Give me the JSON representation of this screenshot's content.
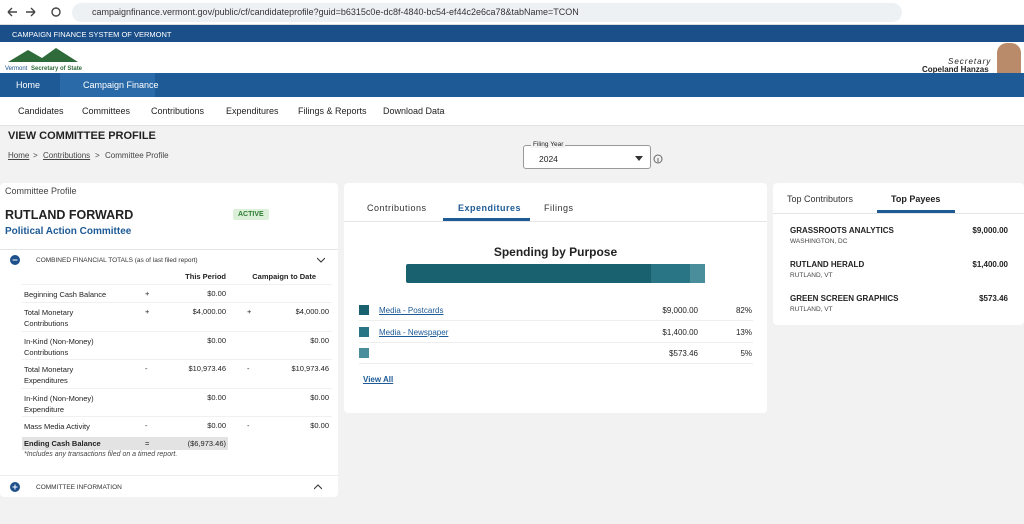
{
  "browser": {
    "url": "campaignfinance.vermont.gov/public/cf/candidateprofile?guid=b6315c0e-dc8f-4840-bc54-ef44c2e6ca78&tabName=TCON"
  },
  "header": {
    "banner": "CAMPAIGN FINANCE SYSTEM OF VERMONT",
    "logo_state": "Vermont",
    "logo_office": "Secretary of State",
    "secretary_title": "Secretary",
    "secretary_name": "Copeland Hanzas"
  },
  "nav": {
    "tabs": [
      "Home",
      "Campaign Finance"
    ],
    "menu": [
      "Candidates",
      "Committees",
      "Contributions",
      "Expenditures",
      "Filings & Reports",
      "Download Data"
    ]
  },
  "page": {
    "title": "VIEW COMMITTEE PROFILE",
    "breadcrumb": [
      "Home",
      "Contributions",
      "Committee Profile"
    ],
    "filing_year_label": "Filing Year",
    "filing_year": "2024"
  },
  "profile": {
    "heading": "Committee Profile",
    "name": "RUTLAND FORWARD",
    "status": "ACTIVE",
    "type": "Political Action Committee",
    "totals_title": "COMBINED FINANCIAL TOTALS (as of last filed report)",
    "columns": [
      "This Period",
      "Campaign to Date"
    ],
    "rows": [
      {
        "label": "Beginning Cash Balance",
        "sign_period": "+",
        "period": "$0.00"
      },
      {
        "label": "Total Monetary Contributions",
        "sign_period": "+",
        "period": "$4,000.00",
        "sign_to_date": "+",
        "to_date": "$4,000.00"
      },
      {
        "label": "In-Kind (Non-Money) Contributions",
        "period": "$0.00",
        "to_date": "$0.00"
      },
      {
        "label": "Total Monetary Expenditures",
        "sign_period": "-",
        "period": "$10,973.46",
        "sign_to_date": "-",
        "to_date": "$10,973.46"
      },
      {
        "label": "In-Kind (Non-Money) Expenditure",
        "period": "$0.00",
        "to_date": "$0.00"
      },
      {
        "label": "Mass Media Activity",
        "sign_period": "-",
        "period": "$0.00",
        "sign_to_date": "-",
        "to_date": "$0.00"
      }
    ],
    "ending": {
      "label": "Ending Cash Balance",
      "sign": "=",
      "value": "($6,973.46)"
    },
    "footnote": "*Includes any transactions filed on a timed report.",
    "info_title": "COMMITTEE INFORMATION"
  },
  "spending": {
    "tabs": [
      "Contributions",
      "Expenditures",
      "Filings"
    ],
    "title": "Spending by Purpose",
    "items": [
      {
        "purpose": "Media - Postcards",
        "color": "#1a6170",
        "amount": {
          "value": 9000,
          "label": "$9,000.00"
        },
        "share": {
          "value": 82,
          "label": "82%"
        }
      },
      {
        "purpose": "Media - Newspaper",
        "color": "#2a7585",
        "amount": {
          "value": 1400,
          "label": "$1,400.00"
        },
        "share": {
          "value": 13,
          "label": "13%"
        }
      },
      {
        "color": "#4a8e9c",
        "amount": {
          "value": 573.46,
          "label": "$573.46"
        },
        "share": {
          "value": 5,
          "label": "5%"
        }
      }
    ],
    "view_all": "View All"
  },
  "payees": {
    "tabs": [
      "Top Contributors",
      "Top Payees"
    ],
    "items": [
      {
        "name": "GRASSROOTS ANALYTICS",
        "location": "WASHINGTON, DC",
        "amount": "$9,000.00"
      },
      {
        "name": "RUTLAND HERALD",
        "location": "RUTLAND, VT",
        "amount": "$1,400.00"
      },
      {
        "name": "GREEN SCREEN GRAPHICS",
        "location": "RUTLAND, VT",
        "amount": "$573.46"
      }
    ]
  }
}
